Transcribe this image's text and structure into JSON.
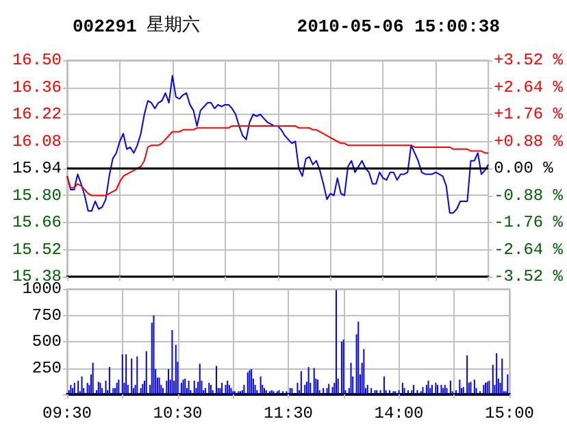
{
  "chart_data": [
    {
      "type": "line",
      "title": "002291",
      "annotations": [
        "星期六",
        "2010-05-06 15:00:38"
      ],
      "categories": [
        null,
        null,
        null,
        null,
        null,
        null,
        null,
        null,
        null,
        null,
        null,
        null,
        null,
        null,
        null,
        null,
        null,
        null,
        null,
        null,
        null,
        null,
        null,
        null,
        null,
        null,
        null,
        null,
        null,
        null,
        null,
        null,
        null,
        null,
        null,
        null,
        null,
        null,
        null,
        null,
        null,
        null,
        null,
        null,
        null,
        null,
        null,
        null,
        null,
        null,
        null,
        null,
        null,
        null,
        null,
        null,
        null,
        null,
        null,
        null,
        null,
        null,
        null,
        null,
        null,
        null,
        null,
        null,
        null,
        null,
        null,
        null,
        null,
        null,
        null,
        null,
        null,
        null,
        null,
        null,
        null,
        null,
        null,
        null,
        null,
        null,
        null,
        null,
        null,
        null,
        null,
        null,
        null,
        null,
        null,
        null,
        null,
        null,
        null,
        null,
        null,
        null,
        null,
        null,
        null,
        null,
        null,
        null,
        null,
        null,
        null,
        null,
        null,
        null,
        null,
        null,
        null,
        null,
        null,
        null,
        null
      ],
      "ylim": [
        15.38,
        16.5
      ],
      "yticks": [
        {
          "value": 15.38,
          "label": "15.38"
        },
        {
          "value": 15.52,
          "label": "15.52"
        },
        {
          "value": 15.66,
          "label": "15.66"
        },
        {
          "value": 15.8,
          "label": "15.80"
        },
        {
          "value": 15.94,
          "label": "15.94"
        },
        {
          "value": 16.08,
          "label": "16.08"
        },
        {
          "value": 16.22,
          "label": "16.22"
        },
        {
          "value": 16.36,
          "label": "16.36"
        },
        {
          "value": 16.5,
          "label": "16.50"
        }
      ],
      "y2lim": [
        -3.52,
        3.52
      ],
      "y2ticks": [
        {
          "value": -3.52,
          "label": "-3.52 %"
        },
        {
          "value": -2.64,
          "label": "-2.64 %"
        },
        {
          "value": -1.76,
          "label": "-1.76 %"
        },
        {
          "value": -0.88,
          "label": "-0.88 %"
        },
        {
          "value": 0,
          "label": "0.00 %"
        },
        {
          "value": 0.88,
          "label": "+0.88 %"
        },
        {
          "value": 1.76,
          "label": "+1.76 %"
        },
        {
          "value": 2.64,
          "label": "+2.64 %"
        },
        {
          "value": 3.52,
          "label": "+3.52 %"
        }
      ],
      "grid": true,
      "ref_lines": [
        {
          "axis": "y",
          "value": 15.94,
          "color": "#000000"
        }
      ],
      "series": [
        {
          "color": "#0000ff",
          "values": [
            15.9,
            15.83,
            15.83,
            15.91,
            15.86,
            15.8,
            15.72,
            15.72,
            15.77,
            15.73,
            15.74,
            15.78,
            15.9,
            15.99,
            16.02,
            16.08,
            16.12,
            16.04,
            16.05,
            16.02,
            16.06,
            16.12,
            16.22,
            16.29,
            16.28,
            16.25,
            16.28,
            16.29,
            16.33,
            16.28,
            16.42,
            16.31,
            16.3,
            16.32,
            16.33,
            16.27,
            16.24,
            16.16,
            16.24,
            16.26,
            16.28,
            16.28,
            16.25,
            16.27,
            16.26,
            16.27,
            16.27,
            16.25,
            16.22,
            16.16,
            16.11,
            16.09,
            16.18,
            16.22,
            16.21,
            16.22,
            16.2,
            16.18,
            16.17,
            16.16,
            16.16,
            16.14,
            16.11,
            16.09,
            16.07,
            16.08,
            15.94,
            15.9,
            15.99,
            16.0,
            15.96,
            15.98,
            15.93,
            15.86,
            15.78,
            15.81,
            15.8,
            15.89,
            15.81,
            15.8,
            15.95,
            15.98,
            15.92,
            15.95,
            15.98,
            15.94,
            15.92,
            15.86,
            15.86,
            15.92,
            15.89,
            15.88,
            15.92,
            15.92,
            15.88,
            15.91,
            15.91,
            15.92,
            16.06,
            16.02,
            15.98,
            15.92,
            15.91,
            15.91,
            15.91,
            15.92,
            15.91,
            15.9,
            15.85,
            15.71,
            15.71,
            15.73,
            15.77,
            15.77,
            15.77,
            15.98,
            15.98,
            16.02,
            15.91,
            15.93,
            15.96
          ]
        },
        {
          "color": "#ff0000",
          "values": [
            15.9,
            15.84,
            15.84,
            15.86,
            15.85,
            15.83,
            15.81,
            15.8,
            15.8,
            15.8,
            15.8,
            15.8,
            15.81,
            15.82,
            15.83,
            15.87,
            15.9,
            15.91,
            15.92,
            15.93,
            15.94,
            15.95,
            15.98,
            16.05,
            16.06,
            16.06,
            16.06,
            16.07,
            16.09,
            16.11,
            16.13,
            16.13,
            16.13,
            16.14,
            16.14,
            16.14,
            16.14,
            16.15,
            16.15,
            16.15,
            16.15,
            16.15,
            16.15,
            16.15,
            16.15,
            16.15,
            16.15,
            16.16,
            16.16,
            16.16,
            16.16,
            16.16,
            16.16,
            16.16,
            16.16,
            16.16,
            16.16,
            16.16,
            16.16,
            16.16,
            16.16,
            16.16,
            16.16,
            16.16,
            16.16,
            16.16,
            16.15,
            16.15,
            16.15,
            16.15,
            16.14,
            16.14,
            16.13,
            16.12,
            16.11,
            16.1,
            16.09,
            16.08,
            16.07,
            16.07,
            16.06,
            16.06,
            16.06,
            16.06,
            16.06,
            16.06,
            16.06,
            16.06,
            16.06,
            16.06,
            16.06,
            16.06,
            16.06,
            16.06,
            16.06,
            16.06,
            16.06,
            16.06,
            16.06,
            16.05,
            16.05,
            16.05,
            16.05,
            16.05,
            16.05,
            16.05,
            16.05,
            16.05,
            16.05,
            16.05,
            16.04,
            16.04,
            16.04,
            16.04,
            16.04,
            16.03,
            16.03,
            16.03,
            16.03,
            16.02,
            16.02
          ]
        }
      ]
    },
    {
      "type": "bar",
      "color": "#0000ff",
      "categories": [
        "09:30",
        null,
        null,
        null,
        null,
        null,
        null,
        null,
        null,
        null,
        null,
        null,
        null,
        null,
        null,
        null,
        null,
        null,
        null,
        null,
        null,
        null,
        null,
        null,
        null,
        null,
        null,
        null,
        null,
        null,
        null,
        null,
        null,
        null,
        null,
        null,
        null,
        null,
        null,
        null,
        null,
        null,
        null,
        null,
        null,
        null,
        null,
        null,
        null,
        null,
        null,
        null,
        null,
        null,
        null,
        null,
        null,
        null,
        null,
        null,
        "10:30",
        null,
        null,
        null,
        null,
        null,
        null,
        null,
        null,
        null,
        null,
        null,
        null,
        null,
        null,
        null,
        null,
        null,
        null,
        null,
        null,
        null,
        null,
        null,
        null,
        null,
        null,
        null,
        null,
        null,
        null,
        null,
        null,
        null,
        null,
        null,
        null,
        null,
        null,
        null,
        null,
        null,
        null,
        null,
        null,
        null,
        null,
        null,
        null,
        null,
        null,
        null,
        null,
        null,
        null,
        null,
        null,
        null,
        null,
        null,
        "11:30",
        null,
        null,
        null,
        null,
        null,
        null,
        null,
        null,
        null,
        null,
        null,
        null,
        null,
        null,
        null,
        null,
        null,
        null,
        null,
        null,
        null,
        null,
        null,
        null,
        null,
        null,
        null,
        null,
        null,
        null,
        null,
        null,
        null,
        null,
        null,
        null,
        null,
        null,
        null,
        null,
        null,
        null,
        null,
        null,
        null,
        null,
        null,
        null,
        null,
        null,
        null,
        null,
        null,
        null,
        null,
        null,
        null,
        null,
        null,
        "14:00",
        null,
        null,
        null,
        null,
        null,
        null,
        null,
        null,
        null,
        null,
        null,
        null,
        null,
        null,
        null,
        null,
        null,
        null,
        null,
        null,
        null,
        null,
        null,
        null,
        null,
        null,
        null,
        null,
        null,
        null,
        null,
        null,
        null,
        null,
        null,
        null,
        null,
        null,
        null,
        null,
        null,
        null,
        null,
        null,
        null,
        null,
        null,
        null,
        null,
        null,
        null,
        null,
        null,
        null,
        null,
        null,
        null,
        null,
        null,
        "15:00"
      ],
      "values": [
        null,
        40,
        90,
        60,
        110,
        null,
        130,
        30,
        170,
        60,
        null,
        110,
        90,
        190,
        300,
        null,
        40,
        120,
        110,
        60,
        null,
        130,
        40,
        260,
        null,
        60,
        60,
        110,
        140,
        null,
        380,
        110,
        380,
        90,
        null,
        340,
        60,
        90,
        360,
        null,
        60,
        100,
        130,
        410,
        null,
        90,
        680,
        750,
        240,
        160,
        160,
        90,
        60,
        null,
        130,
        240,
        140,
        610,
        130,
        470,
        310,
        null,
        110,
        140,
        150,
        60,
        130,
        40,
        null,
        130,
        60,
        120,
        290,
        130,
        40,
        60,
        null,
        110,
        90,
        40,
        null,
        270,
        60,
        60,
        110,
        null,
        90,
        130,
        90,
        60,
        30,
        30,
        null,
        30,
        30,
        40,
        90,
        null,
        210,
        230,
        240,
        150,
        90,
        40,
        null,
        170,
        90,
        60,
        40,
        null,
        30,
        40,
        30,
        null,
        30,
        40,
        null,
        30,
        null,
        30,
        null,
        60,
        60,
        null,
        null,
        110,
        40,
        220,
        null,
        90,
        120,
        260,
        110,
        null,
        250,
        150,
        140,
        40,
        null,
        60,
        null,
        60,
        100,
        null,
        70,
        110,
        990,
        150,
        null,
        500,
        520,
        40,
        null,
        60,
        300,
        170,
        null,
        570,
        690,
        190,
        300,
        430,
        60,
        90,
        null,
        60,
        null,
        40,
        40,
        null,
        40,
        null,
        170,
        40,
        null,
        40,
        null,
        30,
        30,
        null,
        40,
        null,
        110,
        60,
        null,
        40,
        null,
        40,
        90,
        null,
        40,
        null,
        30,
        70,
        null,
        90,
        130,
        60,
        90,
        null,
        110,
        90,
        null,
        90,
        60,
        90,
        60,
        null,
        130,
        30,
        null,
        40,
        null,
        140,
        60,
        70,
        null,
        370,
        110,
        120,
        null,
        140,
        60,
        null,
        30,
        null,
        90,
        110,
        120,
        130,
        null,
        280,
        90,
        390,
        150,
        110,
        340,
        30,
        30,
        190,
        null
      ],
      "ylim": [
        0,
        1000
      ],
      "yticks": [
        {
          "value": 0,
          "label": null
        },
        250,
        500,
        750,
        1000
      ],
      "grid": true
    }
  ]
}
